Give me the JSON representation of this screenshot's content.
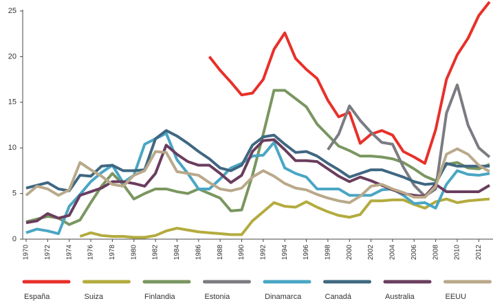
{
  "chart_data": {
    "type": "line",
    "x": [
      1970,
      1971,
      1972,
      1973,
      1974,
      1975,
      1976,
      1977,
      1978,
      1979,
      1980,
      1981,
      1982,
      1983,
      1984,
      1985,
      1986,
      1987,
      1988,
      1989,
      1990,
      1991,
      1992,
      1993,
      1994,
      1995,
      1996,
      1997,
      1998,
      1999,
      2000,
      2001,
      2002,
      2003,
      2004,
      2005,
      2006,
      2007,
      2008,
      2009,
      2010,
      2011,
      2012,
      2013
    ],
    "xlim": [
      1970,
      2013
    ],
    "xticks": [
      1970,
      1972,
      1974,
      1976,
      1978,
      1980,
      1982,
      1984,
      1986,
      1988,
      1990,
      1992,
      1994,
      1996,
      1998,
      2000,
      2002,
      2004,
      2006,
      2008,
      2010,
      2012
    ],
    "ylim": [
      0,
      25
    ],
    "yticks": [
      0,
      5,
      10,
      15,
      20,
      25
    ],
    "series": [
      {
        "name": "España",
        "color": "#e8302a",
        "values": [
          null,
          null,
          null,
          null,
          null,
          null,
          null,
          null,
          null,
          null,
          null,
          null,
          null,
          null,
          null,
          null,
          null,
          20.0,
          18.5,
          17.2,
          15.8,
          16.0,
          17.5,
          20.8,
          22.6,
          19.8,
          18.6,
          17.6,
          15.2,
          13.4,
          13.9,
          10.5,
          11.5,
          11.9,
          11.4,
          9.6,
          9.0,
          8.3,
          12.0,
          17.5,
          20.2,
          22.0,
          24.5,
          26.0
        ]
      },
      {
        "name": "Suiza",
        "color": "#b3ab3e",
        "values": [
          null,
          null,
          null,
          null,
          null,
          0.3,
          0.7,
          0.4,
          0.3,
          0.3,
          0.2,
          0.2,
          0.4,
          0.9,
          1.2,
          1.0,
          0.8,
          0.7,
          0.6,
          0.5,
          0.5,
          2.0,
          3.0,
          4.0,
          3.6,
          3.5,
          4.1,
          3.5,
          3.0,
          2.6,
          2.4,
          2.7,
          4.2,
          4.2,
          4.3,
          4.3,
          3.8,
          3.4,
          4.1,
          4.4,
          4.0,
          4.2,
          4.3,
          4.4
        ]
      },
      {
        "name": "Finlandia",
        "color": "#7a9660",
        "values": [
          1.9,
          2.2,
          2.5,
          2.3,
          1.6,
          2.1,
          4.0,
          5.8,
          7.2,
          6.0,
          4.4,
          5.0,
          5.5,
          5.5,
          5.2,
          5.0,
          5.5,
          5.0,
          4.5,
          3.1,
          3.2,
          7.0,
          11.5,
          16.3,
          16.3,
          15.4,
          14.5,
          12.6,
          11.4,
          10.2,
          9.7,
          9.1,
          9.1,
          9.0,
          8.8,
          8.4,
          7.7,
          6.9,
          6.4,
          8.2,
          8.4,
          7.8,
          7.7,
          8.2
        ]
      },
      {
        "name": "Estonia",
        "color": "#7b7b82",
        "values": [
          null,
          null,
          null,
          null,
          null,
          null,
          null,
          null,
          null,
          null,
          null,
          null,
          null,
          null,
          null,
          null,
          null,
          null,
          null,
          null,
          null,
          null,
          null,
          null,
          null,
          null,
          null,
          null,
          9.8,
          11.5,
          14.6,
          13.0,
          11.7,
          10.6,
          10.4,
          7.9,
          5.9,
          4.7,
          5.5,
          13.8,
          16.9,
          12.5,
          10.0,
          9.0
        ]
      },
      {
        "name": "Dinamarca",
        "color": "#4aa6c4",
        "values": [
          0.7,
          1.1,
          0.9,
          0.6,
          3.6,
          4.9,
          6.3,
          7.3,
          8.1,
          6.2,
          7.0,
          10.4,
          11.0,
          11.6,
          8.7,
          7.2,
          5.5,
          5.5,
          6.6,
          7.8,
          8.3,
          9.1,
          9.2,
          10.6,
          7.8,
          7.2,
          6.8,
          5.5,
          5.5,
          5.5,
          4.8,
          4.8,
          4.8,
          5.4,
          5.5,
          4.8,
          3.9,
          4.0,
          3.4,
          6.0,
          7.5,
          7.1,
          7.0,
          7.2
        ]
      },
      {
        "name": "Canadá",
        "color": "#3f6781",
        "values": [
          5.6,
          5.9,
          6.2,
          5.5,
          5.3,
          7.0,
          6.9,
          8.0,
          8.1,
          7.5,
          7.5,
          7.6,
          11.0,
          11.9,
          11.3,
          10.5,
          9.6,
          8.8,
          7.8,
          7.5,
          8.1,
          10.3,
          11.2,
          11.4,
          10.4,
          9.5,
          9.6,
          9.1,
          8.3,
          7.6,
          6.8,
          7.2,
          7.6,
          7.6,
          7.2,
          6.8,
          6.3,
          6.0,
          6.1,
          8.3,
          8.0,
          8.0,
          8.0,
          8.0
        ]
      },
      {
        "name": "Australia",
        "color": "#6a3d5e",
        "values": [
          1.8,
          2.0,
          2.8,
          2.3,
          2.6,
          4.8,
          5.2,
          5.6,
          6.3,
          6.3,
          6.1,
          5.8,
          7.2,
          10.3,
          9.3,
          8.5,
          8.1,
          8.1,
          7.2,
          6.2,
          7.0,
          9.6,
          10.8,
          10.9,
          9.8,
          8.6,
          8.6,
          8.5,
          7.7,
          6.9,
          6.3,
          6.8,
          6.4,
          5.9,
          5.4,
          5.0,
          4.8,
          4.7,
          6.0,
          5.2,
          5.2,
          5.2,
          5.2,
          5.9
        ]
      },
      {
        "name": "EEUU",
        "color": "#b9a98a",
        "values": [
          4.8,
          5.8,
          5.5,
          4.8,
          5.4,
          8.4,
          7.6,
          6.9,
          6.0,
          5.8,
          7.0,
          7.5,
          9.6,
          9.5,
          7.4,
          7.2,
          7.0,
          6.2,
          5.5,
          5.3,
          5.6,
          6.8,
          7.5,
          6.9,
          6.1,
          5.6,
          5.4,
          4.9,
          4.5,
          4.2,
          4.0,
          4.7,
          5.8,
          6.0,
          5.5,
          5.1,
          4.6,
          4.6,
          5.8,
          9.3,
          9.9,
          9.3,
          8.1,
          7.4
        ]
      }
    ]
  }
}
